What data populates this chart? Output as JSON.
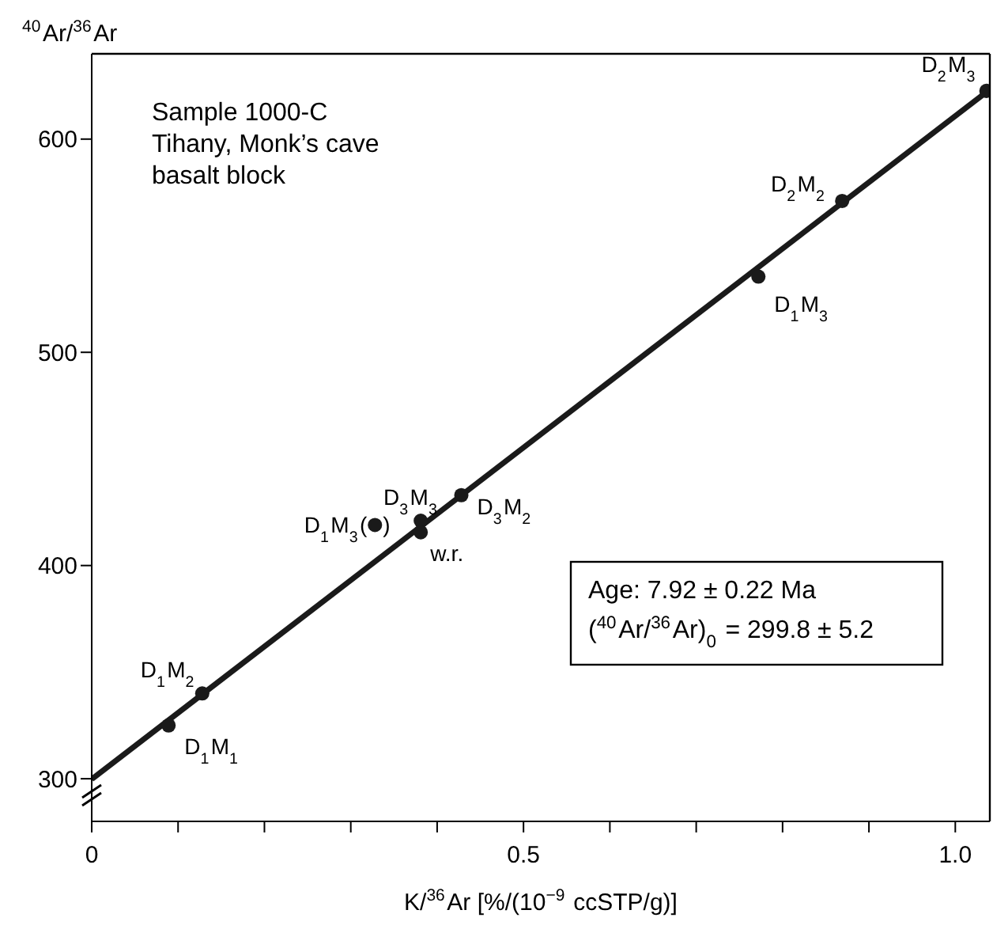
{
  "chart_data": {
    "type": "scatter",
    "xlabel": "K/$^{36}$Ar [%/(10$^{−9}$ ccSTP/g)]",
    "ylabel": "$^{40}$Ar/$^{36}$Ar",
    "xlim": [
      0,
      1.04
    ],
    "ylim": [
      280,
      640
    ],
    "xticks": [
      0,
      {
        "value": 0.1,
        "label": null
      },
      {
        "value": 0.2,
        "label": null
      },
      {
        "value": 0.3,
        "label": null
      },
      {
        "value": 0.4,
        "label": null
      },
      0.5,
      {
        "value": 0.6,
        "label": null
      },
      {
        "value": 0.7,
        "label": null
      },
      {
        "value": 0.8,
        "label": null
      },
      {
        "value": 0.9,
        "label": null
      },
      {
        "value": 1,
        "label": "1.0"
      }
    ],
    "yticks": [
      300,
      400,
      500,
      600
    ],
    "series": [
      {
        "marker": "circle",
        "color": "#1a1a1a",
        "x": [
          0.089,
          0.128,
          0.328,
          0.381,
          0.381,
          0.428,
          0.772,
          0.869,
          1.036
        ],
        "values": [
          325,
          340,
          419,
          421,
          415.6,
          433,
          535.5,
          571,
          622.6
        ]
      },
      {
        "type": "line",
        "color": "#1a1a1a",
        "x": [
          0,
          1.04
        ],
        "values": [
          299.8,
          623.3
        ],
        "line_style": "solid"
      }
    ],
    "annotations": [
      "Sample 1000-C\nTihany, Monk’s cave\nbasalt block",
      "Age: 7.92 ± 0.22 Ma",
      "($^{40}$Ar/$^{36}$Ar)$_{0}$ = 299.8 ± 5.2",
      {
        "text": "D$_{1}$M$_{1}$",
        "x": 0.089,
        "y": 325
      },
      {
        "text": "D$_{1}$M$_{2}$",
        "x": 0.128,
        "y": 340
      },
      {
        "text": "D$_{1}$M$_{3}$(",
        "x": 0.328,
        "y": 419
      },
      {
        "text": ")",
        "x": 0.328,
        "y": 419
      },
      {
        "text": "D$_{3}$M$_{3}$",
        "x": 0.381,
        "y": 421
      },
      {
        "text": "w.r.",
        "x": 0.381,
        "y": 415.6
      },
      {
        "text": "D$_{3}$M$_{2}$",
        "x": 0.428,
        "y": 433
      },
      {
        "text": "D$_{1}$M$_{3}$",
        "x": 0.772,
        "y": 535.5
      },
      {
        "text": "D$_{2}$M$_{2}$",
        "x": 0.869,
        "y": 571
      },
      {
        "text": "D$_{2}$M$_{3}$",
        "x": 1.036,
        "y": 622.6
      }
    ]
  }
}
